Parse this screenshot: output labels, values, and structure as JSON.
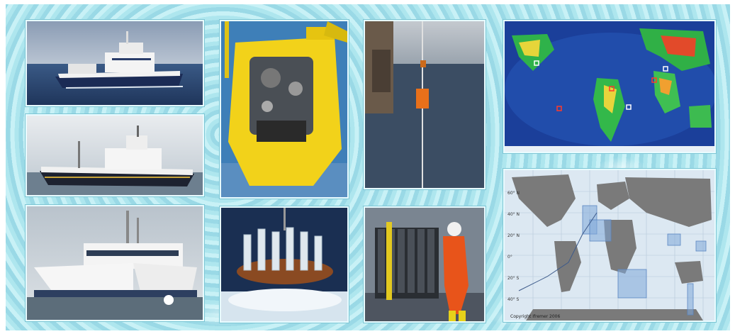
{
  "panels": [
    {
      "id": "ship-1",
      "subject": "research-vessel-at-sea"
    },
    {
      "id": "ship-2",
      "subject": "research-vessel-side-view"
    },
    {
      "id": "ship-3",
      "subject": "catamaran-vessel-docked"
    },
    {
      "id": "rov",
      "subject": "yellow-submersible"
    },
    {
      "id": "sediment-sampler",
      "subject": "multicorer-tubes-in-water"
    },
    {
      "id": "buoy-line",
      "subject": "instrument-line-over-side"
    },
    {
      "id": "rosette",
      "subject": "ctd-rosette-with-technician"
    },
    {
      "id": "bathymetry-map",
      "subject": "colored-relief-world-map"
    },
    {
      "id": "cruise-map",
      "subject": "world-map-cruise-tracks"
    }
  ],
  "colors": {
    "background_water": "#b7e9f0",
    "ocean_blue": "#2a4f8a",
    "submersible_yellow": "#f2d21a",
    "safety_orange": "#e8541a",
    "map_land_grey": "#7a7a7a",
    "map_sea_light": "#dce8f2"
  },
  "cruise_map": {
    "footer_left": "Copyright Ifremer 2006",
    "lat_labels": [
      "60° N",
      "40° N",
      "20° N",
      "0°",
      "20° S",
      "40° S"
    ]
  }
}
